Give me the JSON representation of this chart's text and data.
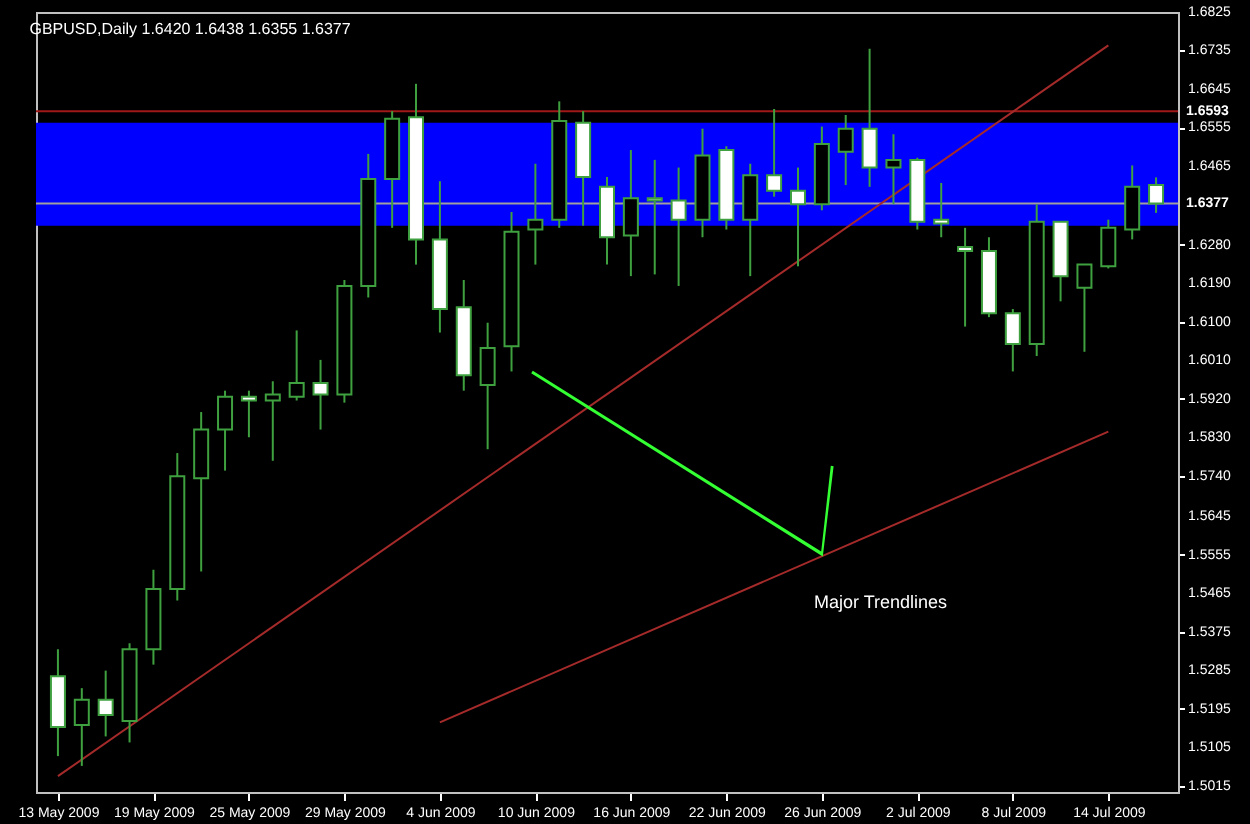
{
  "chart_data": {
    "type": "candlestick",
    "title": "GBPUSD,Daily  1.6420 1.6438 1.6355 1.6377",
    "categories": [
      "13 May 2009",
      null,
      null,
      null,
      "19 May 2009",
      null,
      null,
      null,
      "25 May 2009",
      null,
      null,
      null,
      "29 May 2009",
      null,
      null,
      null,
      "4 Jun 2009",
      null,
      null,
      null,
      "10 Jun 2009",
      null,
      null,
      null,
      "16 Jun 2009",
      null,
      null,
      null,
      "22 Jun 2009",
      null,
      null,
      null,
      "26 Jun 2009",
      null,
      null,
      null,
      "2 Jul 2009",
      null,
      null,
      null,
      "8 Jul 2009",
      null,
      null,
      null,
      "14 Jul 2009",
      null,
      null
    ],
    "ohlc": [
      [
        1.5271,
        1.5334,
        1.5084,
        1.5152
      ],
      [
        1.5157,
        1.5243,
        1.5061,
        1.5216
      ],
      [
        1.5216,
        1.5284,
        1.513,
        1.518
      ],
      [
        1.5166,
        1.5348,
        1.5116,
        1.5334
      ],
      [
        1.5334,
        1.552,
        1.5298,
        1.5475
      ],
      [
        1.5475,
        1.5793,
        1.5448,
        1.5739
      ],
      [
        1.5734,
        1.5889,
        1.5516,
        1.5848
      ],
      [
        1.5848,
        1.5939,
        1.5752,
        1.5925
      ],
      [
        1.5925,
        1.5939,
        1.583,
        1.5916
      ],
      [
        1.5916,
        1.5961,
        1.5775,
        1.593
      ],
      [
        1.5925,
        1.608,
        1.5916,
        1.5957
      ],
      [
        1.5957,
        1.6011,
        1.5848,
        1.593
      ],
      [
        1.593,
        1.6198,
        1.5911,
        1.6184
      ],
      [
        1.6184,
        1.6493,
        1.6157,
        1.6434
      ],
      [
        1.6434,
        1.6593,
        1.632,
        1.6575
      ],
      [
        1.6579,
        1.6657,
        1.6234,
        1.6293
      ],
      [
        1.6293,
        1.6429,
        1.6075,
        1.613
      ],
      [
        1.6134,
        1.6198,
        1.5939,
        1.5975
      ],
      [
        1.5952,
        1.6098,
        1.5802,
        1.6039
      ],
      [
        1.6043,
        1.6357,
        1.5984,
        1.6311
      ],
      [
        1.6316,
        1.647,
        1.6234,
        1.6339
      ],
      [
        1.6339,
        1.6616,
        1.632,
        1.657
      ],
      [
        1.6566,
        1.6593,
        1.6325,
        1.6439
      ],
      [
        1.6416,
        1.6439,
        1.6234,
        1.6298
      ],
      [
        1.6302,
        1.6502,
        1.6207,
        1.6389
      ],
      [
        1.6389,
        1.6479,
        1.6211,
        1.6384
      ],
      [
        1.6384,
        1.6461,
        1.6184,
        1.6339
      ],
      [
        1.6339,
        1.6552,
        1.6298,
        1.6489
      ],
      [
        1.6502,
        1.6511,
        1.6316,
        1.6339
      ],
      [
        1.6339,
        1.647,
        1.6207,
        1.6443
      ],
      [
        1.6443,
        1.6598,
        1.6393,
        1.6407
      ],
      [
        1.6407,
        1.6461,
        1.623,
        1.6375
      ],
      [
        1.6375,
        1.6557,
        1.6361,
        1.6516
      ],
      [
        1.6498,
        1.6584,
        1.642,
        1.6552
      ],
      [
        1.6552,
        1.6739,
        1.6416,
        1.6461
      ],
      [
        1.6461,
        1.6539,
        1.6375,
        1.6479
      ],
      [
        1.6479,
        1.6484,
        1.6316,
        1.6334
      ],
      [
        1.6339,
        1.6425,
        1.6298,
        1.633
      ],
      [
        1.6275,
        1.632,
        1.6089,
        1.6266
      ],
      [
        1.6266,
        1.6298,
        1.6111,
        1.612
      ],
      [
        1.612,
        1.613,
        1.5984,
        1.6048
      ],
      [
        1.6048,
        1.6375,
        1.602,
        1.6334
      ],
      [
        1.6334,
        1.6334,
        1.6148,
        1.6207
      ],
      [
        1.618,
        1.6234,
        1.603,
        1.6234
      ],
      [
        1.623,
        1.6339,
        1.6225,
        1.632
      ],
      [
        1.6316,
        1.6466,
        1.6293,
        1.6416
      ],
      [
        1.642,
        1.6438,
        1.6355,
        1.6377
      ]
    ],
    "color": "#3fa03f",
    "series": [
      {
        "type": "line",
        "color": "#a52a2a",
        "x": [
          "13 May 2009",
          "14 Jul 2009"
        ],
        "values": [
          1.5037,
          1.6747
        ]
      },
      {
        "type": "line",
        "color": "#a52a2a",
        "x": [
          "4 Jun 2009",
          "14 Jul 2009"
        ],
        "values": [
          1.5163,
          1.5843
        ]
      }
    ],
    "ylim": [
      1.5,
      1.6825
    ],
    "yticks": [
      1.6825,
      1.6735,
      1.6645,
      1.6555,
      1.6465,
      {
        "value": 1.628,
        "label": "1.6280"
      },
      {
        "value": 1.619,
        "label": "1.6190"
      },
      {
        "value": 1.61,
        "label": "1.6100"
      },
      {
        "value": 1.601,
        "label": "1.6010"
      },
      {
        "value": 1.592,
        "label": "1.5920"
      },
      {
        "value": 1.583,
        "label": "1.5830"
      },
      {
        "value": 1.574,
        "label": "1.5740"
      },
      1.5645,
      1.5555,
      1.5465,
      1.5375,
      1.5285,
      1.5195,
      1.5105,
      1.5015
    ],
    "ref_lines": [
      {
        "axis": "y",
        "value": 1.6593,
        "label": "1.6593",
        "color": "#a01818"
      },
      {
        "axis": "y",
        "value": 1.6377,
        "label": "1.6377",
        "color": "#a0a0a0"
      }
    ],
    "bands": [
      {
        "axis": "y",
        "from": 1.6325,
        "to": 1.6566,
        "color": "#0000ff"
      }
    ],
    "annotations": [
      "Major Trendlines"
    ],
    "grid": false,
    "legend": false
  }
}
